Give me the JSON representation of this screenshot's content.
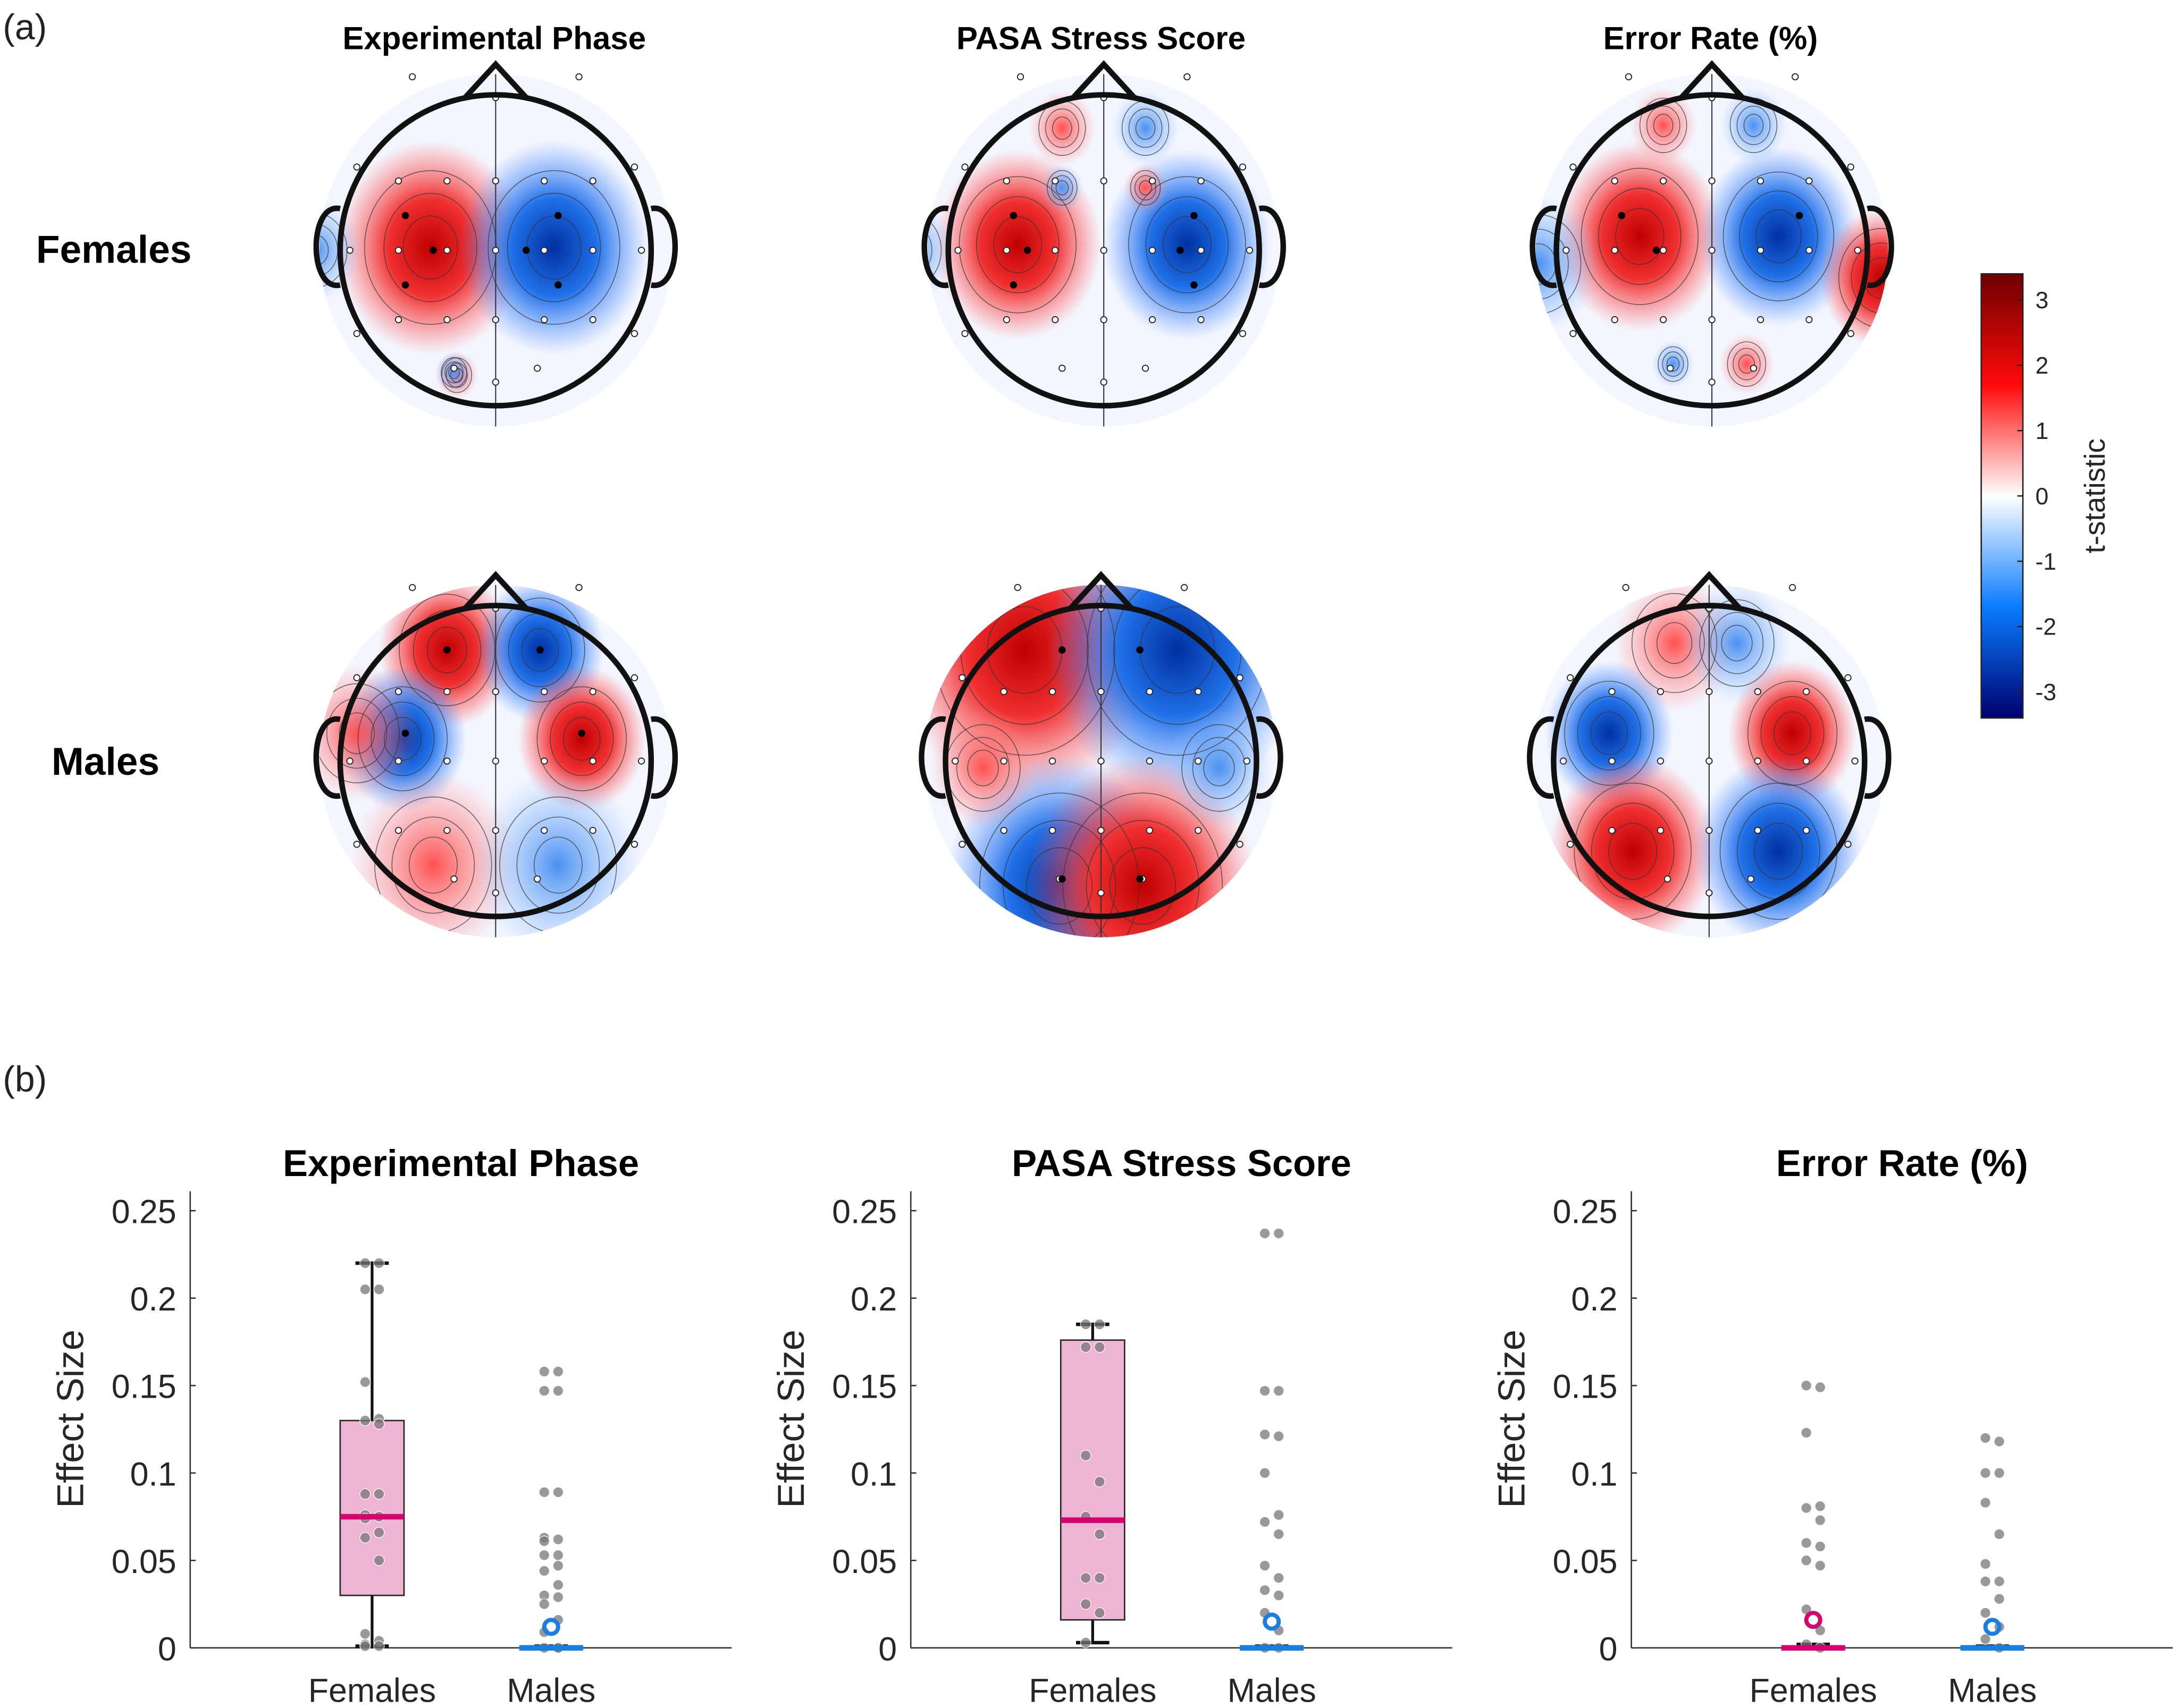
{
  "panel_labels": {
    "a": "(a)",
    "b": "(b)"
  },
  "topomaps": {
    "columns": [
      "Experimental Phase",
      "PASA Stress Score",
      "Error Rate (%)"
    ],
    "rows": [
      "Females",
      "Males"
    ],
    "colorbar": {
      "label": "t-statistic",
      "ticks": [
        "3",
        "2",
        "1",
        "0",
        "-1",
        "-2",
        "-3"
      ],
      "range": [
        -3.4,
        3.4
      ],
      "colors": [
        "#00006e",
        "#0a7cff",
        "#ffffff",
        "#ff0a0a",
        "#6e0000"
      ]
    }
  },
  "chart_data": [
    {
      "type": "box",
      "title": "Experimental Phase",
      "ylabel": "Effect Size",
      "xlabel": "",
      "ylim": [
        0,
        0.26
      ],
      "yticks": [
        "0",
        "0.05",
        "0.1",
        "0.15",
        "0.2",
        "0.25"
      ],
      "categories": [
        "Females",
        "Males"
      ],
      "groups": [
        {
          "name": "Females",
          "color": "#d6006e",
          "box": {
            "q1": 0.03,
            "median": 0.075,
            "q3": 0.13,
            "whisker_low": 0.001,
            "whisker_high": 0.22
          },
          "points": [
            0.22,
            0.22,
            0.205,
            0.205,
            0.152,
            0.131,
            0.13,
            0.128,
            0.088,
            0.088,
            0.076,
            0.075,
            0.074,
            0.066,
            0.063,
            0.05,
            0.008,
            0.004,
            0.002,
            0.001,
            0.001
          ]
        },
        {
          "name": "Males",
          "color": "#1a7ee0",
          "box": {
            "q1": 0,
            "median": 0,
            "q3": 0,
            "whisker_low": 0,
            "whisker_high": 0.001
          },
          "mean": 0.012,
          "points": [
            0.158,
            0.158,
            0.147,
            0.147,
            0.089,
            0.089,
            0.063,
            0.062,
            0.061,
            0.053,
            0.053,
            0.047,
            0.044,
            0.036,
            0.03,
            0.029,
            0.025,
            0.016,
            0.009,
            0,
            0,
            0
          ]
        }
      ]
    },
    {
      "type": "box",
      "title": "PASA Stress Score",
      "ylabel": "Effect Size",
      "xlabel": "",
      "ylim": [
        0,
        0.26
      ],
      "yticks": [
        "0",
        "0.05",
        "0.1",
        "0.15",
        "0.2",
        "0.25"
      ],
      "categories": [
        "Females",
        "Males"
      ],
      "groups": [
        {
          "name": "Females",
          "color": "#d6006e",
          "box": {
            "q1": 0.016,
            "median": 0.073,
            "q3": 0.176,
            "whisker_low": 0.003,
            "whisker_high": 0.185
          },
          "points": [
            0.185,
            0.185,
            0.172,
            0.172,
            0.11,
            0.095,
            0.075,
            0.065,
            0.04,
            0.04,
            0.025,
            0.02,
            0.003
          ]
        },
        {
          "name": "Males",
          "color": "#1a7ee0",
          "box": {
            "q1": 0,
            "median": 0,
            "q3": 0,
            "whisker_low": 0,
            "whisker_high": 0.001
          },
          "mean": 0.015,
          "points": [
            0.237,
            0.237,
            0.147,
            0.147,
            0.122,
            0.121,
            0.1,
            0.076,
            0.072,
            0.065,
            0.047,
            0.04,
            0.033,
            0.03,
            0.02,
            0.01,
            0,
            0
          ]
        }
      ]
    },
    {
      "type": "box",
      "title": "Error Rate (%)",
      "ylabel": "Effect Size",
      "xlabel": "",
      "ylim": [
        0,
        0.26
      ],
      "yticks": [
        "0",
        "0.05",
        "0.1",
        "0.15",
        "0.2",
        "0.25"
      ],
      "categories": [
        "Females",
        "Males"
      ],
      "groups": [
        {
          "name": "Females",
          "color": "#d6006e",
          "box": {
            "q1": 0,
            "median": 0,
            "q3": 0,
            "whisker_low": 0,
            "whisker_high": 0.002
          },
          "mean": 0.016,
          "points": [
            0.15,
            0.149,
            0.123,
            0.081,
            0.08,
            0.073,
            0.06,
            0.058,
            0.05,
            0.047,
            0.022,
            0.01,
            0.002,
            0
          ]
        },
        {
          "name": "Males",
          "color": "#1a7ee0",
          "box": {
            "q1": 0,
            "median": 0,
            "q3": 0,
            "whisker_low": 0,
            "whisker_high": 0.001
          },
          "mean": 0.012,
          "points": [
            0.12,
            0.118,
            0.1,
            0.1,
            0.083,
            0.065,
            0.048,
            0.038,
            0.038,
            0.028,
            0.02,
            0.012,
            0.005,
            0
          ]
        }
      ]
    }
  ]
}
